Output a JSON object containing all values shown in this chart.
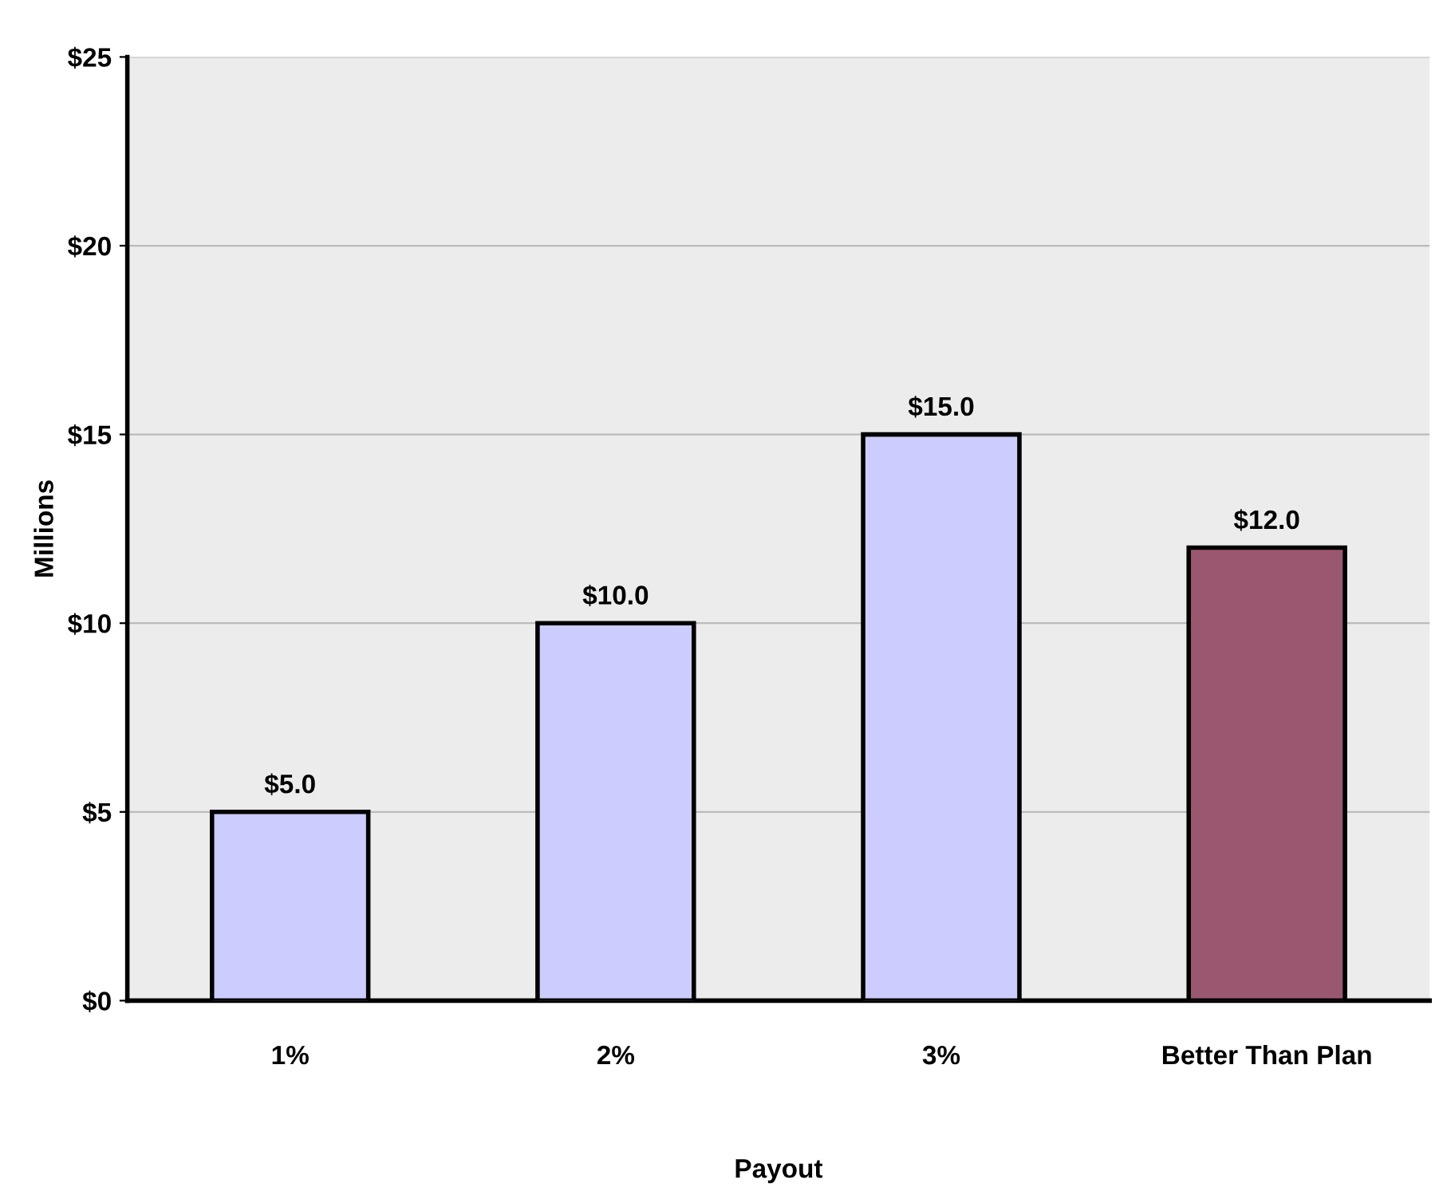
{
  "chart_data": {
    "type": "bar",
    "xlabel": "Payout",
    "ylabel": "Millions",
    "categories": [
      "1%",
      "2%",
      "3%",
      "Better Than Plan"
    ],
    "values": [
      5.0,
      10.0,
      15.0,
      12.0
    ],
    "value_labels": [
      "$5.0",
      "$10.0",
      "$15.0",
      "$12.0"
    ],
    "colors": [
      "#ccccff",
      "#ccccff",
      "#ccccff",
      "#9a5870"
    ],
    "ylim": [
      0,
      25
    ],
    "yticks": [
      {
        "value": 0,
        "label": "$0"
      },
      {
        "value": 5,
        "label": "$5"
      },
      {
        "value": 10,
        "label": "$10"
      },
      {
        "value": 15,
        "label": "$15"
      },
      {
        "value": 20,
        "label": "$20"
      },
      {
        "value": 25,
        "label": "$25"
      }
    ],
    "grid": "y",
    "legend": false
  }
}
